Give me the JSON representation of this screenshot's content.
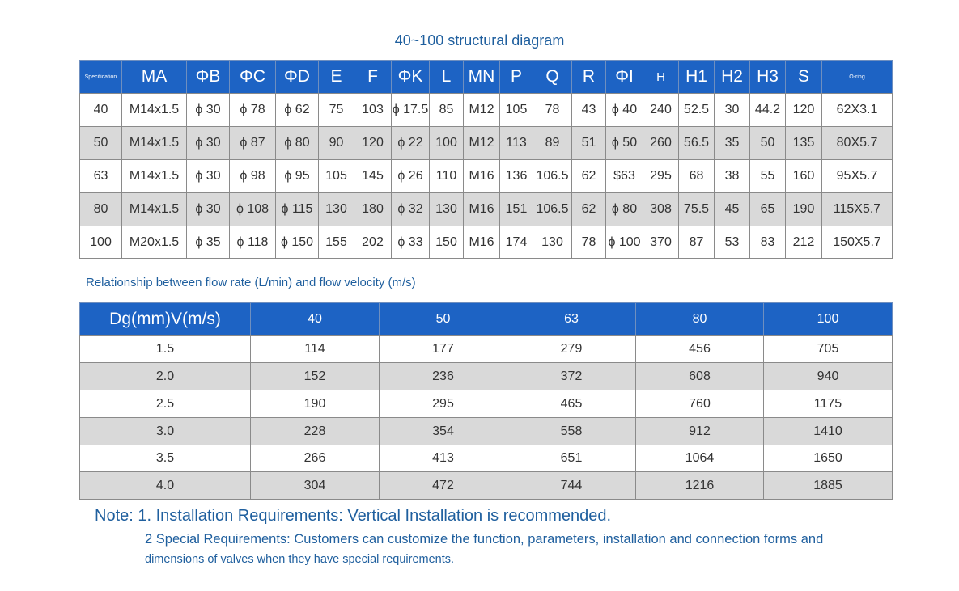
{
  "title": "40~100 structural diagram",
  "spec_table": {
    "header": [
      "Specification",
      "MA",
      "ΦB",
      "ΦC",
      "ΦD",
      "E",
      "F",
      "ΦK",
      "L",
      "MN",
      "P",
      "Q",
      "R",
      "ΦI",
      "H",
      "H1",
      "H2",
      "H3",
      "S",
      "O-ring"
    ],
    "rows": [
      [
        "40",
        "M14x1.5",
        "ϕ 30",
        "ϕ 78",
        "ϕ 62",
        "75",
        "103",
        "ϕ 17.5",
        "85",
        "M12",
        "105",
        "78",
        "43",
        "ϕ 40",
        "240",
        "52.5",
        "30",
        "44.2",
        "120",
        "62X3.1"
      ],
      [
        "50",
        "M14x1.5",
        "ϕ 30",
        "ϕ 87",
        "ϕ 80",
        "90",
        "120",
        "ϕ 22",
        "100",
        "M12",
        "113",
        "89",
        "51",
        "ϕ 50",
        "260",
        "56.5",
        "35",
        "50",
        "135",
        "80X5.7"
      ],
      [
        "63",
        "M14x1.5",
        "ϕ 30",
        "ϕ 98",
        "ϕ 95",
        "105",
        "145",
        "ϕ 26",
        "110",
        "M16",
        "136",
        "106.5",
        "62",
        "$63",
        "295",
        "68",
        "38",
        "55",
        "160",
        "95X5.7"
      ],
      [
        "80",
        "M14x1.5",
        "ϕ 30",
        "ϕ 108",
        "ϕ 115",
        "130",
        "180",
        "ϕ 32",
        "130",
        "M16",
        "151",
        "106.5",
        "62",
        "ϕ 80",
        "308",
        "75.5",
        "45",
        "65",
        "190",
        "115X5.7"
      ],
      [
        "100",
        "M20x1.5",
        "ϕ 35",
        "ϕ 118",
        "ϕ 150",
        "155",
        "202",
        "ϕ 33",
        "150",
        "M16",
        "174",
        "130",
        "78",
        "ϕ 100",
        "370",
        "87",
        "53",
        "83",
        "212",
        "150X5.7"
      ]
    ]
  },
  "flow_table": {
    "caption": "Relationship between flow rate (L/min) and flow velocity (m/s)",
    "header": [
      "Dg(mm)V(m/s)",
      "40",
      "50",
      "63",
      "80",
      "100"
    ],
    "rows": [
      [
        "1.5",
        "114",
        "177",
        "279",
        "456",
        "705"
      ],
      [
        "2.0",
        "152",
        "236",
        "372",
        "608",
        "940"
      ],
      [
        "2.5",
        "190",
        "295",
        "465",
        "760",
        "1175"
      ],
      [
        "3.0",
        "228",
        "354",
        "558",
        "912",
        "1410"
      ],
      [
        "3.5",
        "266",
        "413",
        "651",
        "1064",
        "1650"
      ],
      [
        "4.0",
        "304",
        "472",
        "744",
        "1216",
        "1885"
      ]
    ]
  },
  "notes": [
    "Note: 1. Installation Requirements: Vertical Installation is recommended.",
    "2 Special Requirements: Customers can customize the function, parameters, installation and connection forms and",
    "dimensions of valves when they have special requirements."
  ]
}
